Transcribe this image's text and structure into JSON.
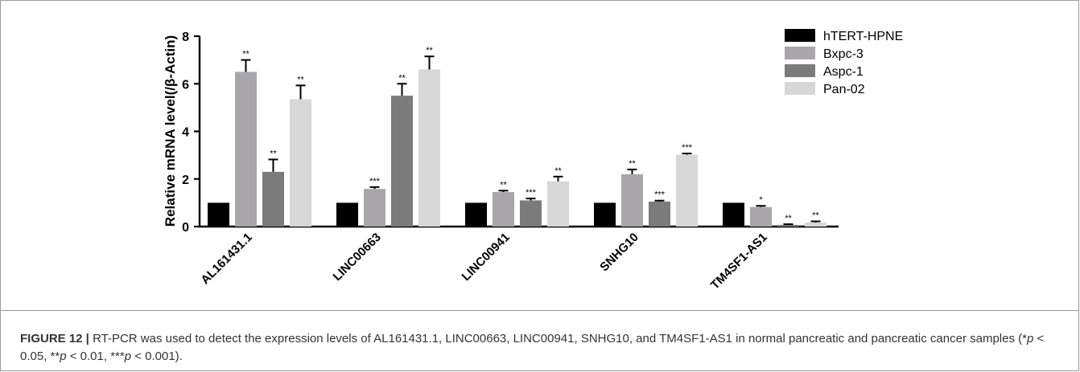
{
  "caption": {
    "label": "FIGURE 12 |",
    "text": "RT-PCR was used to detect the expression levels of AL161431.1, LINC00663, LINC00941, SNHG10, and TM4SF1-AS1 in normal pancreatic and pancreatic cancer samples (*",
    "p_symbol": "p",
    "t1": " < 0.05, **",
    "t2": " < 0.01, ***",
    "t3": " < 0.001)."
  },
  "chart_data": {
    "type": "bar",
    "title": "",
    "xlabel": "",
    "ylabel": "Relative mRNA level(/β-Actin)",
    "ylim": [
      0,
      8
    ],
    "yticks": [
      0,
      2,
      4,
      6,
      8
    ],
    "categories": [
      "AL161431.1",
      "LINC00663",
      "LINC00941",
      "SNHG10",
      "TM4SF1-AS1"
    ],
    "legend_position": "top-right",
    "series": [
      {
        "name": "hTERT-HPNE",
        "color": "#000000",
        "values": [
          1.0,
          1.0,
          1.0,
          1.0,
          1.0
        ],
        "errors": [
          0,
          0,
          0,
          0,
          0
        ],
        "significance": [
          "",
          "",
          "",
          "",
          ""
        ]
      },
      {
        "name": "Bxpc-3",
        "color": "#a9a6ab",
        "values": [
          6.5,
          1.58,
          1.45,
          2.2,
          0.82
        ],
        "errors": [
          0.5,
          0.08,
          0.06,
          0.2,
          0.05
        ],
        "significance": [
          "**",
          "***",
          "**",
          "**",
          "*"
        ]
      },
      {
        "name": "Aspc-1",
        "color": "#7b7b7b",
        "values": [
          2.3,
          5.5,
          1.1,
          1.05,
          0.07
        ],
        "errors": [
          0.52,
          0.5,
          0.08,
          0.04,
          0.03
        ],
        "significance": [
          "**",
          "**",
          "***",
          "***",
          "**"
        ]
      },
      {
        "name": "Pan-02",
        "color": "#d7d7d7",
        "values": [
          5.35,
          6.6,
          1.9,
          3.02,
          0.17
        ],
        "errors": [
          0.58,
          0.55,
          0.2,
          0.05,
          0.05
        ],
        "significance": [
          "**",
          "**",
          "**",
          "***",
          "**"
        ]
      }
    ]
  }
}
